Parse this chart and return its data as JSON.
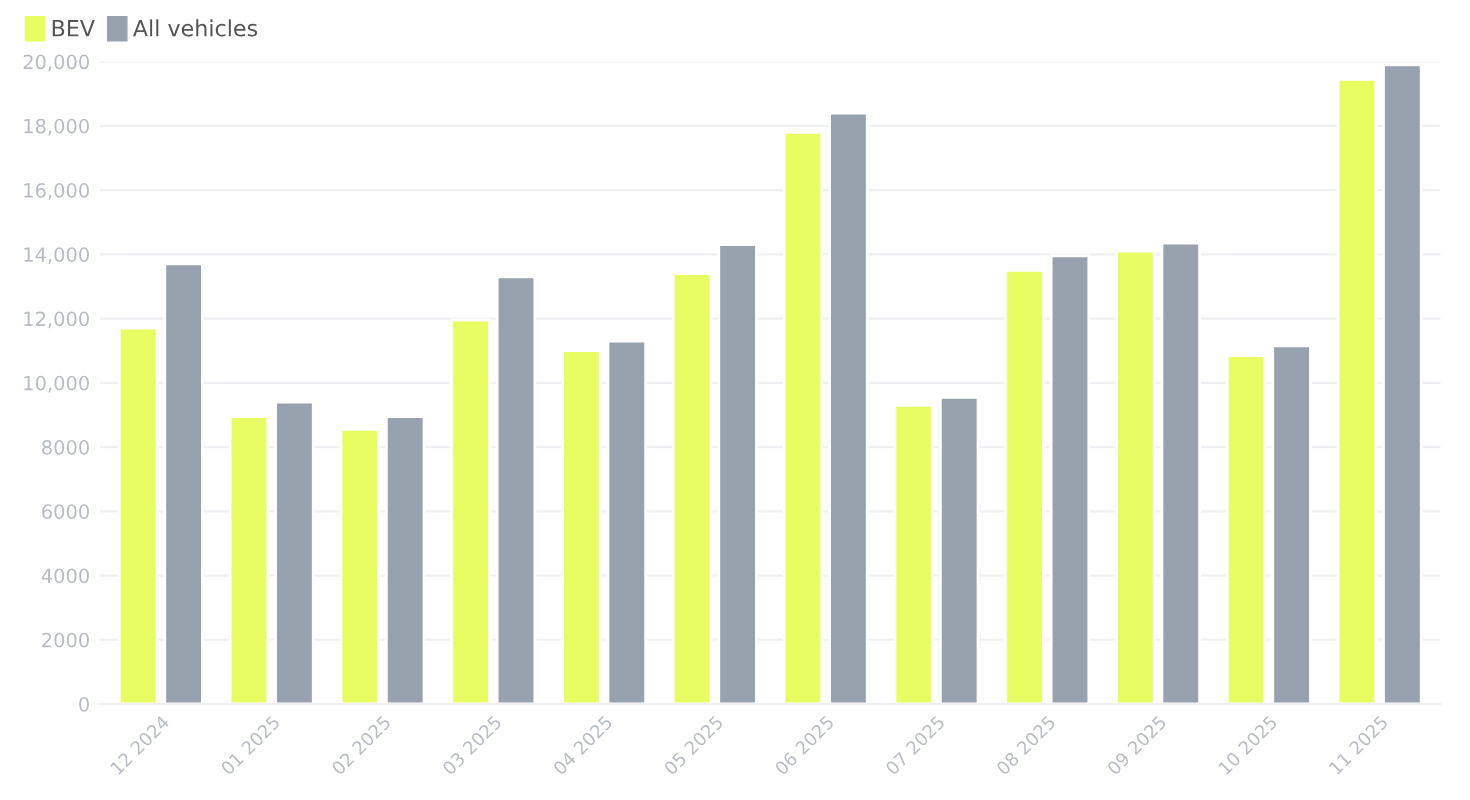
{
  "chart_data": {
    "type": "bar",
    "categories": [
      "12 2024",
      "01 2025",
      "02 2025",
      "03 2025",
      "04 2025",
      "05 2025",
      "06 2025",
      "07 2025",
      "08 2025",
      "09 2025",
      "10 2025",
      "11 2025"
    ],
    "series": [
      {
        "name": "BEV",
        "color": "#e8fd62",
        "values": [
          11700,
          8950,
          8550,
          11950,
          11000,
          13400,
          17800,
          9300,
          13500,
          14100,
          10850,
          19450
        ]
      },
      {
        "name": "All vehicles",
        "color": "#98a1ae",
        "values": [
          13700,
          9400,
          8950,
          13300,
          11300,
          14300,
          18400,
          9550,
          13950,
          14350,
          11150,
          19900
        ]
      }
    ],
    "ylim": [
      0,
      20000
    ],
    "yticks": [
      0,
      2000,
      4000,
      6000,
      8000,
      {
        "value": 10000,
        "label": "10,000"
      },
      {
        "value": 12000,
        "label": "12,000"
      },
      {
        "value": 14000,
        "label": "14,000"
      },
      {
        "value": 16000,
        "label": "16,000"
      },
      {
        "value": 18000,
        "label": "18,000"
      },
      {
        "value": 20000,
        "label": "20,000"
      }
    ],
    "grid": "y",
    "legend": "top left"
  }
}
